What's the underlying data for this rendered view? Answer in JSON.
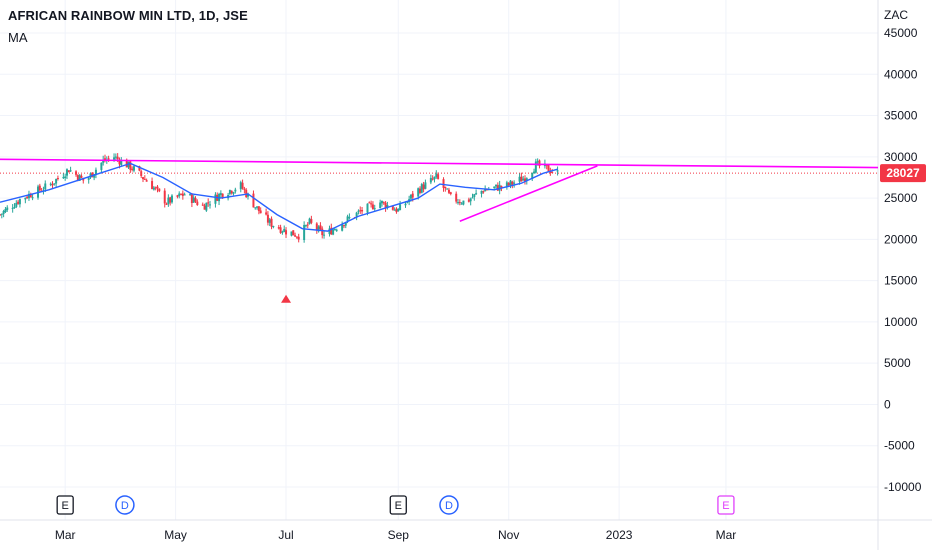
{
  "header": {
    "title": "AFRICAN RAINBOW MIN LTD, 1D, JSE",
    "indicator": "MA",
    "currency": "ZAC"
  },
  "price_label": {
    "value": "28027",
    "color": "#f23645"
  },
  "colors": {
    "up": "#26a69a",
    "down": "#f23645",
    "ma": "#2962ff",
    "trendline": "#ff00ff",
    "grid": "#f0f3fa",
    "event_earnings": "#131722",
    "event_dividend": "#2962ff",
    "event_future": "#e040fb"
  },
  "chart_data": {
    "type": "candlestick",
    "symbol": "AFRICAN RAINBOW MIN LTD",
    "interval": "1D",
    "exchange": "JSE",
    "currency": "ZAC",
    "y_ticks": [
      45000,
      40000,
      35000,
      30000,
      25000,
      20000,
      15000,
      10000,
      5000,
      0,
      -5000,
      -10000
    ],
    "ylim": [
      -14000,
      49000
    ],
    "x_ticks": [
      "Mar",
      "May",
      "Jul",
      "Sep",
      "Nov",
      "2023",
      "Mar"
    ],
    "x_tick_dates": [
      "2022-03-01",
      "2022-05-01",
      "2022-07-01",
      "2022-09-01",
      "2022-11-01",
      "2023-01-01",
      "2023-03-01"
    ],
    "xlim": [
      "2022-01-24",
      "2023-05-24"
    ],
    "last_price": 28027,
    "price_path": [
      {
        "date": "2022-01-24",
        "close": 23000
      },
      {
        "date": "2022-02-05",
        "close": 25000
      },
      {
        "date": "2022-02-20",
        "close": 26500
      },
      {
        "date": "2022-03-03",
        "close": 28500
      },
      {
        "date": "2022-03-12",
        "close": 27000
      },
      {
        "date": "2022-03-22",
        "close": 29500
      },
      {
        "date": "2022-03-28",
        "close": 30000
      },
      {
        "date": "2022-04-08",
        "close": 28500
      },
      {
        "date": "2022-04-18",
        "close": 26500
      },
      {
        "date": "2022-04-26",
        "close": 24500
      },
      {
        "date": "2022-05-06",
        "close": 25500
      },
      {
        "date": "2022-05-16",
        "close": 24000
      },
      {
        "date": "2022-05-26",
        "close": 25500
      },
      {
        "date": "2022-06-06",
        "close": 26500
      },
      {
        "date": "2022-06-14",
        "close": 24000
      },
      {
        "date": "2022-06-22",
        "close": 22000
      },
      {
        "date": "2022-07-01",
        "close": 21000
      },
      {
        "date": "2022-07-08",
        "close": 20500
      },
      {
        "date": "2022-07-14",
        "close": 22000
      },
      {
        "date": "2022-07-22",
        "close": 20500
      },
      {
        "date": "2022-08-01",
        "close": 22000
      },
      {
        "date": "2022-08-12",
        "close": 23500
      },
      {
        "date": "2022-08-22",
        "close": 24500
      },
      {
        "date": "2022-09-01",
        "close": 23500
      },
      {
        "date": "2022-09-12",
        "close": 26000
      },
      {
        "date": "2022-09-22",
        "close": 27500
      },
      {
        "date": "2022-09-30",
        "close": 25000
      },
      {
        "date": "2022-10-08",
        "close": 24500
      },
      {
        "date": "2022-10-18",
        "close": 26000
      },
      {
        "date": "2022-10-31",
        "close": 26500
      },
      {
        "date": "2022-11-10",
        "close": 27500
      },
      {
        "date": "2022-11-16",
        "close": 29000
      },
      {
        "date": "2022-11-23",
        "close": 28500
      },
      {
        "date": "2022-11-28",
        "close": 28027
      }
    ],
    "moving_average": [
      {
        "date": "2022-01-24",
        "value": 24500
      },
      {
        "date": "2022-02-20",
        "value": 26000
      },
      {
        "date": "2022-03-20",
        "value": 28000
      },
      {
        "date": "2022-04-06",
        "value": 29200
      },
      {
        "date": "2022-04-24",
        "value": 27500
      },
      {
        "date": "2022-05-10",
        "value": 25500
      },
      {
        "date": "2022-05-26",
        "value": 25000
      },
      {
        "date": "2022-06-10",
        "value": 25500
      },
      {
        "date": "2022-06-26",
        "value": 23000
      },
      {
        "date": "2022-07-10",
        "value": 21300
      },
      {
        "date": "2022-07-24",
        "value": 21000
      },
      {
        "date": "2022-08-10",
        "value": 22800
      },
      {
        "date": "2022-08-28",
        "value": 24000
      },
      {
        "date": "2022-09-12",
        "value": 25000
      },
      {
        "date": "2022-09-24",
        "value": 26700
      },
      {
        "date": "2022-10-08",
        "value": 26300
      },
      {
        "date": "2022-10-24",
        "value": 26000
      },
      {
        "date": "2022-11-08",
        "value": 26800
      },
      {
        "date": "2022-11-20",
        "value": 28000
      },
      {
        "date": "2022-11-28",
        "value": 28500
      }
    ],
    "trendlines": [
      {
        "name": "resistance",
        "from": {
          "date": "2022-01-24",
          "value": 29700
        },
        "to": {
          "date": "2023-05-24",
          "value": 28700
        }
      },
      {
        "name": "support",
        "from": {
          "date": "2022-10-05",
          "value": 22200
        },
        "to": {
          "date": "2022-12-20",
          "value": 28900
        }
      }
    ],
    "signal_marker": {
      "date": "2022-07-01",
      "value": 12800,
      "shape": "triangle-up"
    },
    "events": [
      {
        "label": "E",
        "date": "2022-03-01",
        "kind": "earnings"
      },
      {
        "label": "D",
        "date": "2022-04-03",
        "kind": "dividend"
      },
      {
        "label": "E",
        "date": "2022-09-01",
        "kind": "earnings"
      },
      {
        "label": "D",
        "date": "2022-09-29",
        "kind": "dividend"
      },
      {
        "label": "E",
        "date": "2023-03-01",
        "kind": "future-earnings"
      }
    ]
  }
}
